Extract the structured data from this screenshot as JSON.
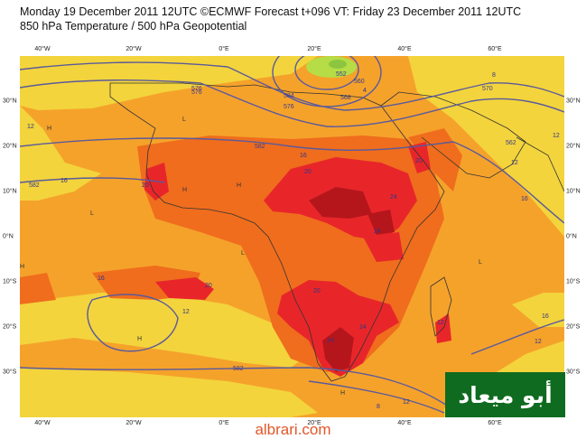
{
  "header": {
    "line1": "Monday 19 December 2011 12UTC ©ECMWF Forecast t+096 VT: Friday 23 December 2011 12UTC",
    "line2": "850 hPa Temperature / 500 hPa Geopotential"
  },
  "lon_labels": [
    "40°W",
    "20°W",
    "0°E",
    "20°E",
    "40°E",
    "60°E"
  ],
  "lat_labels": [
    "30°N",
    "20°N",
    "10°N",
    "0°N",
    "10°S",
    "20°S",
    "30°S"
  ],
  "contour_labels": [
    "576",
    "584",
    "552",
    "560",
    "568",
    "576",
    "582",
    "582",
    "576",
    "570",
    "562",
    "582"
  ],
  "temperature_labels": [
    "12",
    "12",
    "16",
    "16",
    "16",
    "20",
    "20",
    "20",
    "20",
    "20",
    "24",
    "24",
    "24",
    "24",
    "16",
    "16",
    "12",
    "12",
    "12",
    "8",
    "8",
    "4",
    "12",
    "12"
  ],
  "pressure_marks": [
    "H",
    "H",
    "H",
    "H",
    "H",
    "H",
    "L",
    "L",
    "L",
    "L"
  ],
  "colors": {
    "ocean_orange": "#f5a22b",
    "yellow": "#f3d43c",
    "deep_orange": "#ef6d1d",
    "red": "#e8262a",
    "dark_red": "#b5161c",
    "green_cold": "#b6dc46",
    "contour": "#5a5a9c",
    "logo_bg": "#0f6b1f",
    "site_text": "#e2572a"
  },
  "logo": {
    "text": "أبو ميعاد"
  },
  "site": {
    "text": "albrari.com"
  }
}
